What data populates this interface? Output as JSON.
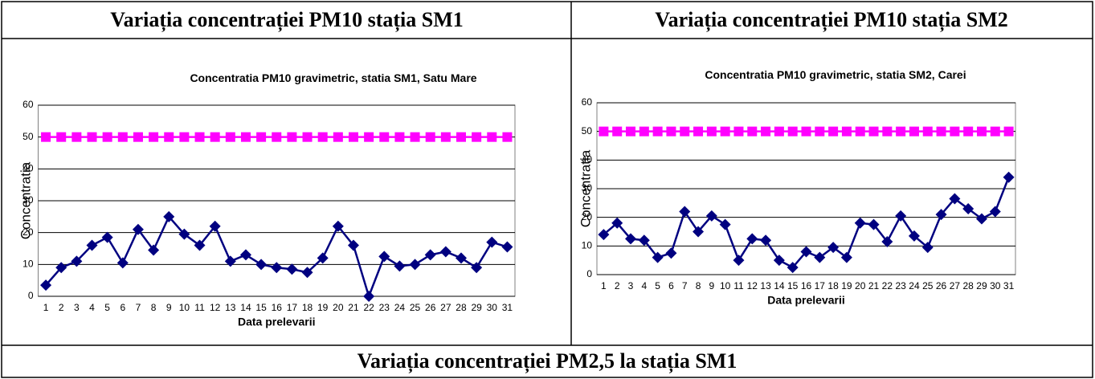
{
  "table": {
    "headers": [
      "Variația concentrației PM10 stația SM1",
      "Variația concentrației PM10 stația SM2"
    ],
    "footer": "Variația concentrației PM2,5 la stația SM1"
  },
  "chart_data": [
    {
      "type": "line",
      "title": "Concentratia PM10 gravimetric, statia SM1, Satu Mare",
      "x_label": "Data prelevarii",
      "y_label": "Concentratia",
      "categories": [
        "1",
        "2",
        "3",
        "4",
        "5",
        "6",
        "7",
        "8",
        "9",
        "10",
        "11",
        "12",
        "13",
        "14",
        "15",
        "16",
        "17",
        "18",
        "19",
        "20",
        "21",
        "22",
        "23",
        "24",
        "25",
        "26",
        "27",
        "28",
        "29",
        "30",
        "31"
      ],
      "series": [
        {
          "color": "#000080",
          "marker": "diamond",
          "values": [
            3.5,
            9,
            11,
            16,
            18.5,
            10.5,
            21,
            14.5,
            25,
            19.5,
            16,
            22,
            11,
            13,
            10,
            9,
            8.5,
            7.5,
            12,
            22,
            16,
            0,
            12.5,
            9.5,
            10,
            13,
            14,
            12,
            9,
            17,
            15.5
          ]
        },
        {
          "color": "#ff00ff",
          "marker": "square",
          "values": [
            50,
            50,
            50,
            50,
            50,
            50,
            50,
            50,
            50,
            50,
            50,
            50,
            50,
            50,
            50,
            50,
            50,
            50,
            50,
            50,
            50,
            50,
            50,
            50,
            50,
            50,
            50,
            50,
            50,
            50,
            50
          ]
        }
      ],
      "ylim": [
        0,
        60
      ],
      "yticks": [
        0,
        10,
        20,
        30,
        40,
        50,
        60
      ],
      "grid": true
    },
    {
      "type": "line",
      "title": "Concentratia PM10 gravimetric, statia SM2, Carei",
      "x_label": "Data prelevarii",
      "y_label": "Concentratia",
      "categories": [
        "1",
        "2",
        "3",
        "4",
        "5",
        "6",
        "7",
        "8",
        "9",
        "10",
        "11",
        "12",
        "13",
        "14",
        "15",
        "16",
        "17",
        "18",
        "19",
        "20",
        "21",
        "22",
        "23",
        "24",
        "25",
        "26",
        "27",
        "28",
        "29",
        "30",
        "31"
      ],
      "series": [
        {
          "color": "#000080",
          "marker": "diamond",
          "values": [
            14,
            18,
            12.5,
            12,
            6,
            7.5,
            22,
            15,
            20.5,
            17.5,
            5,
            12.5,
            12,
            5,
            2.5,
            8,
            6,
            9.5,
            6,
            18,
            17.5,
            11.5,
            20.5,
            13.5,
            9.5,
            21,
            26.5,
            23,
            19.5,
            22,
            34
          ]
        },
        {
          "color": "#ff00ff",
          "marker": "square",
          "values": [
            50,
            50,
            50,
            50,
            50,
            50,
            50,
            50,
            50,
            50,
            50,
            50,
            50,
            50,
            50,
            50,
            50,
            50,
            50,
            50,
            50,
            50,
            50,
            50,
            50,
            50,
            50,
            50,
            50,
            50,
            50
          ]
        }
      ],
      "ylim": [
        0,
        60
      ],
      "yticks": [
        0,
        10,
        20,
        30,
        40,
        50,
        60
      ],
      "grid": true
    }
  ]
}
